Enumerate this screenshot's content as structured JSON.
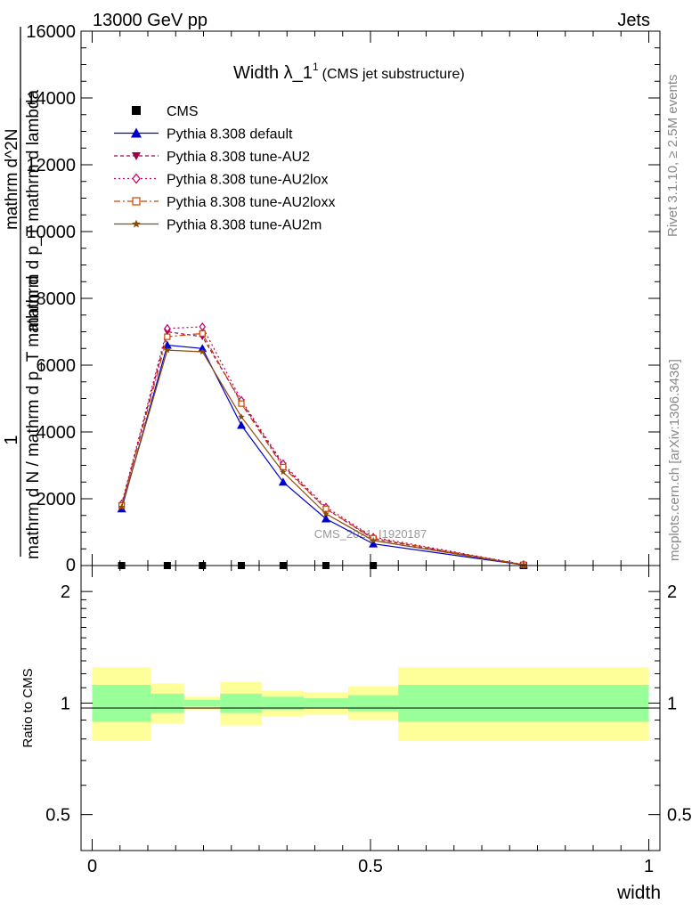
{
  "header": {
    "left": "13000 GeV pp",
    "right": "Jets"
  },
  "side": {
    "rivet": "Rivet 3.1.10, ≥ 2.5M events",
    "mcplots": "mcplots.cern.ch [arXiv:1306.3436]"
  },
  "main": {
    "title": "Width λ_1",
    "title_sup": "1",
    "title_note": "(CMS jet substructure)",
    "watermark": "CMS_2021_I1920187",
    "ylabel": {
      "frac_one": "1",
      "frac_denom": "mathrm d N / mathrm d p_T mathrm d",
      "frac_num2": "mathrm d^2N",
      "frac_denom2": "mathrm d p_T mathrm d lambda"
    }
  },
  "ratio": {
    "ylabel": "Ratio to CMS"
  },
  "xaxis": {
    "label": "width"
  },
  "colors": {
    "band_outer": "#ffff99",
    "band_inner": "#99ff99",
    "cms": "#000000",
    "default": "#0000cc",
    "au2": "#a0004a",
    "au2lox": "#bb0066",
    "au2loxx": "#cc4400",
    "au2m": "#8b4c0b"
  },
  "chart_data": {
    "type": "line",
    "x_edges": [
      0,
      0.105,
      0.165,
      0.23,
      0.305,
      0.38,
      0.46,
      0.55,
      1.0
    ],
    "x_centers": [
      0.053,
      0.135,
      0.198,
      0.268,
      0.343,
      0.42,
      0.505,
      0.775
    ],
    "xlim": [
      -0.02,
      1.02
    ],
    "main_ylim": [
      0,
      16000
    ],
    "main_yticks": [
      2000,
      4000,
      6000,
      8000,
      10000,
      12000,
      14000,
      16000
    ],
    "ratio_ylim": [
      0.4,
      2.35
    ],
    "ratio_yticks": [
      0.5,
      1,
      2
    ],
    "xticks": [
      0,
      0.5,
      1
    ],
    "series": [
      {
        "key": "cms",
        "name": "CMS",
        "marker": "square",
        "dash": "",
        "values": [
          0,
          0,
          0,
          0,
          0,
          0,
          0,
          0
        ]
      },
      {
        "key": "default",
        "name": "Pythia 8.308 default",
        "marker": "triangle-up",
        "dash": "",
        "values": [
          1700,
          6600,
          6500,
          4200,
          2500,
          1400,
          650,
          20
        ]
      },
      {
        "key": "au2",
        "name": "Pythia 8.308 tune-AU2",
        "marker": "triangle-down",
        "dash": "4,3",
        "values": [
          1800,
          7000,
          6850,
          4900,
          3000,
          1700,
          800,
          25
        ]
      },
      {
        "key": "au2lox",
        "name": "Pythia 8.308 tune-AU2lox",
        "marker": "diamond",
        "dash": "2,3",
        "values": [
          1850,
          7100,
          7150,
          4950,
          3050,
          1750,
          850,
          30
        ]
      },
      {
        "key": "au2loxx",
        "name": "Pythia 8.308 tune-AU2loxx",
        "marker": "square-open",
        "dash": "7,3,2,3",
        "values": [
          1800,
          6850,
          6950,
          4850,
          2950,
          1700,
          820,
          25
        ]
      },
      {
        "key": "au2m",
        "name": "Pythia 8.308 tune-AU2m",
        "marker": "star",
        "dash": "",
        "values": [
          1750,
          6450,
          6400,
          4450,
          2800,
          1550,
          750,
          20
        ]
      }
    ],
    "ratio_band_inner": [
      [
        0.89,
        1.12
      ],
      [
        0.94,
        1.06
      ],
      [
        0.98,
        1.02
      ],
      [
        0.94,
        1.06
      ],
      [
        0.96,
        1.04
      ],
      [
        0.97,
        1.03
      ],
      [
        0.95,
        1.05
      ],
      [
        0.89,
        1.12
      ]
    ],
    "ratio_band_outer": [
      [
        0.79,
        1.25
      ],
      [
        0.88,
        1.13
      ],
      [
        0.96,
        1.04
      ],
      [
        0.87,
        1.14
      ],
      [
        0.92,
        1.08
      ],
      [
        0.93,
        1.07
      ],
      [
        0.9,
        1.11
      ],
      [
        0.79,
        1.25
      ]
    ]
  }
}
